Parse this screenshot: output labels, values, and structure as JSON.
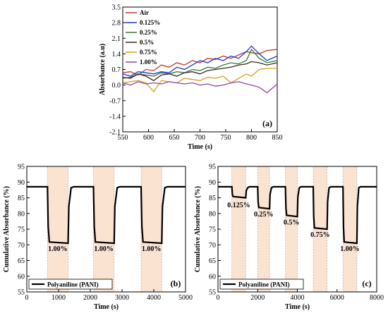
{
  "chart_data": [
    {
      "id": "a",
      "type": "line",
      "panel_label": "(a)",
      "xlabel": "Time (s)",
      "ylabel": "Absorbance (a.u)",
      "xlim": [
        550,
        850
      ],
      "ylim": [
        -2.1,
        3.5
      ],
      "xticks": [
        550,
        600,
        650,
        700,
        750,
        800,
        850
      ],
      "yticks": [
        -2.1,
        -1.4,
        -0.7,
        0.0,
        0.7,
        1.4,
        2.1,
        2.8,
        3.5
      ],
      "ytick_labels": [
        "-2.1",
        "-1.4",
        "-0.7",
        "0.0",
        "0.7",
        "1.4",
        "2.1",
        "2.8",
        "3.5"
      ],
      "legend_position": "top-left",
      "series": [
        {
          "name": "Air",
          "color": "#c0392b",
          "x": [
            550,
            565,
            580,
            595,
            610,
            625,
            640,
            655,
            670,
            685,
            700,
            715,
            730,
            745,
            760,
            775,
            790,
            800,
            815,
            830,
            850
          ],
          "y": [
            0.55,
            0.6,
            0.45,
            0.7,
            0.65,
            0.9,
            0.8,
            1.0,
            0.9,
            1.1,
            1.0,
            1.2,
            1.15,
            1.3,
            1.2,
            1.35,
            1.5,
            1.45,
            1.4,
            1.55,
            1.6
          ]
        },
        {
          "name": "0.125%",
          "color": "#1f3bd1",
          "x": [
            550,
            565,
            580,
            595,
            610,
            625,
            640,
            655,
            670,
            685,
            700,
            715,
            730,
            745,
            760,
            775,
            790,
            800,
            815,
            830,
            850
          ],
          "y": [
            0.5,
            0.4,
            0.6,
            0.55,
            0.5,
            0.6,
            0.55,
            0.8,
            0.7,
            0.9,
            1.1,
            1.0,
            1.2,
            1.1,
            1.3,
            1.2,
            1.5,
            1.75,
            1.4,
            1.1,
            1.3
          ]
        },
        {
          "name": "0.25%",
          "color": "#2e7d32",
          "x": [
            550,
            565,
            580,
            595,
            610,
            625,
            640,
            655,
            670,
            685,
            700,
            715,
            730,
            745,
            760,
            775,
            790,
            800,
            815,
            830,
            850
          ],
          "y": [
            0.3,
            0.35,
            0.5,
            0.45,
            0.4,
            0.55,
            0.5,
            0.6,
            0.55,
            0.7,
            0.65,
            0.8,
            0.75,
            0.9,
            1.0,
            0.95,
            1.1,
            1.6,
            1.2,
            1.0,
            1.1
          ]
        },
        {
          "name": "0.5%",
          "color": "#3e2723",
          "x": [
            550,
            565,
            580,
            595,
            610,
            625,
            640,
            655,
            670,
            685,
            700,
            715,
            730,
            745,
            760,
            775,
            790,
            800,
            815,
            830,
            850
          ],
          "y": [
            0.35,
            0.3,
            0.5,
            0.4,
            0.2,
            0.45,
            0.5,
            0.4,
            0.55,
            0.6,
            0.5,
            0.65,
            0.7,
            0.75,
            0.8,
            0.9,
            0.95,
            1.05,
            1.0,
            0.9,
            1.0
          ]
        },
        {
          "name": "0.75%",
          "color": "#d4a017",
          "x": [
            550,
            565,
            580,
            595,
            610,
            625,
            640,
            655,
            670,
            685,
            700,
            715,
            730,
            745,
            760,
            775,
            790,
            800,
            815,
            830,
            850
          ],
          "y": [
            0.1,
            0.15,
            0.2,
            0.1,
            -0.3,
            0.2,
            0.15,
            0.1,
            0.3,
            0.25,
            0.2,
            0.35,
            0.3,
            0.4,
            0.1,
            0.3,
            0.5,
            0.4,
            0.7,
            0.75,
            0.75
          ]
        },
        {
          "name": "1.00%",
          "color": "#8e44ad",
          "x": [
            550,
            565,
            580,
            595,
            610,
            625,
            640,
            655,
            670,
            685,
            700,
            715,
            730,
            745,
            760,
            775,
            790,
            800,
            815,
            830,
            850
          ],
          "y": [
            0.1,
            0.0,
            0.15,
            0.05,
            0.1,
            0.05,
            0.15,
            0.1,
            0.05,
            0.1,
            0.0,
            0.05,
            -0.05,
            0.0,
            0.1,
            0.15,
            0.05,
            0.0,
            -0.1,
            -0.35,
            0.05
          ]
        }
      ]
    },
    {
      "id": "b",
      "type": "line",
      "panel_label": "(b)",
      "xlabel": "Time (s)",
      "ylabel": "Cumulative Absorbance (%)",
      "xlim": [
        0,
        5000
      ],
      "ylim": [
        55,
        95
      ],
      "xticks": [
        0,
        1000,
        2000,
        3000,
        4000,
        5000
      ],
      "yticks": [
        55,
        60,
        65,
        70,
        75,
        80,
        85,
        90,
        95
      ],
      "legend_position": "bottom-left",
      "legend": "Polyaniline (PANI)",
      "shaded_regions": [
        [
          650,
          1300
        ],
        [
          2100,
          2750
        ],
        [
          3600,
          4250
        ]
      ],
      "series": [
        {
          "name": "Polyaniline (PANI)",
          "color": "#000000",
          "baseline": 88.5,
          "pulses": [
            {
              "start": 650,
              "end": 1300,
              "level": 70.5
            },
            {
              "start": 2100,
              "end": 2750,
              "level": 70.5
            },
            {
              "start": 3600,
              "end": 4250,
              "level": 70.5
            }
          ]
        }
      ],
      "annotations": [
        {
          "text": "1.00%",
          "x": 975,
          "y": 68
        },
        {
          "text": "1.00%",
          "x": 2425,
          "y": 68
        },
        {
          "text": "1.00%",
          "x": 3925,
          "y": 68
        }
      ]
    },
    {
      "id": "c",
      "type": "line",
      "panel_label": "(c)",
      "xlabel": "Time (s)",
      "ylabel": "Cumulative Absorbance (%)",
      "xlim": [
        0,
        8000
      ],
      "ylim": [
        55,
        95
      ],
      "xticks": [
        0,
        2000,
        4000,
        6000,
        8000
      ],
      "yticks": [
        55,
        60,
        65,
        70,
        75,
        80,
        85,
        90,
        95
      ],
      "legend_position": "bottom-left",
      "legend": "Polyaniline (PANI)",
      "shaded_regions": [
        [
          700,
          1400
        ],
        [
          2000,
          2600
        ],
        [
          3400,
          4000
        ],
        [
          4800,
          5500
        ],
        [
          6300,
          7000
        ]
      ],
      "series": [
        {
          "name": "Polyaniline (PANI)",
          "color": "#000000",
          "baseline": 88.5,
          "pulses": [
            {
              "start": 700,
              "end": 1400,
              "level": 85
            },
            {
              "start": 2000,
              "end": 2600,
              "level": 81.5
            },
            {
              "start": 3400,
              "end": 4000,
              "level": 79
            },
            {
              "start": 4800,
              "end": 5500,
              "level": 75
            },
            {
              "start": 6300,
              "end": 7000,
              "level": 70.5
            }
          ]
        }
      ],
      "annotations": [
        {
          "text": "0.125%",
          "x": 1050,
          "y": 82
        },
        {
          "text": "0.25%",
          "x": 2300,
          "y": 79
        },
        {
          "text": "0.5%",
          "x": 3700,
          "y": 76.5
        },
        {
          "text": "0.75%",
          "x": 5150,
          "y": 72.5
        },
        {
          "text": "1.00%",
          "x": 6650,
          "y": 68
        }
      ]
    }
  ]
}
